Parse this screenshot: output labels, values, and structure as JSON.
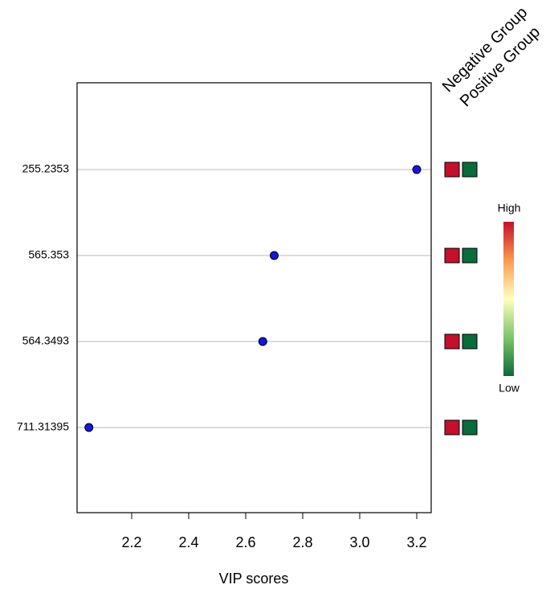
{
  "chart_data": {
    "type": "dot",
    "categories": [
      "255.2353",
      "565.353",
      "564.3493",
      "711.31395"
    ],
    "values": [
      3.2,
      2.7,
      2.66,
      2.05
    ],
    "color": "#1515e6",
    "xlim": [
      2.0085,
      3.2507
    ],
    "xticks": [
      2.2,
      2.4,
      2.6,
      2.8,
      {
        "value": 3,
        "label": "3.0"
      },
      3.2
    ],
    "xlabel": "VIP scores",
    "grid": true,
    "heatmap": {
      "groups": [
        "Negative Group",
        "Positive Group"
      ],
      "colors": [
        [
          "#c4102c",
          "#0b6b3a"
        ],
        [
          "#c4102c",
          "#0b6b3a"
        ],
        [
          "#c4102c",
          "#0b6b3a"
        ],
        [
          "#c4102c",
          "#0b6b3a"
        ]
      ]
    },
    "colorbar": {
      "high": "High",
      "low": "Low",
      "colors": [
        "#0b6b3a",
        "#7fc46a",
        "#ffffbf",
        "#f99b4f",
        "#c4102c"
      ]
    }
  }
}
